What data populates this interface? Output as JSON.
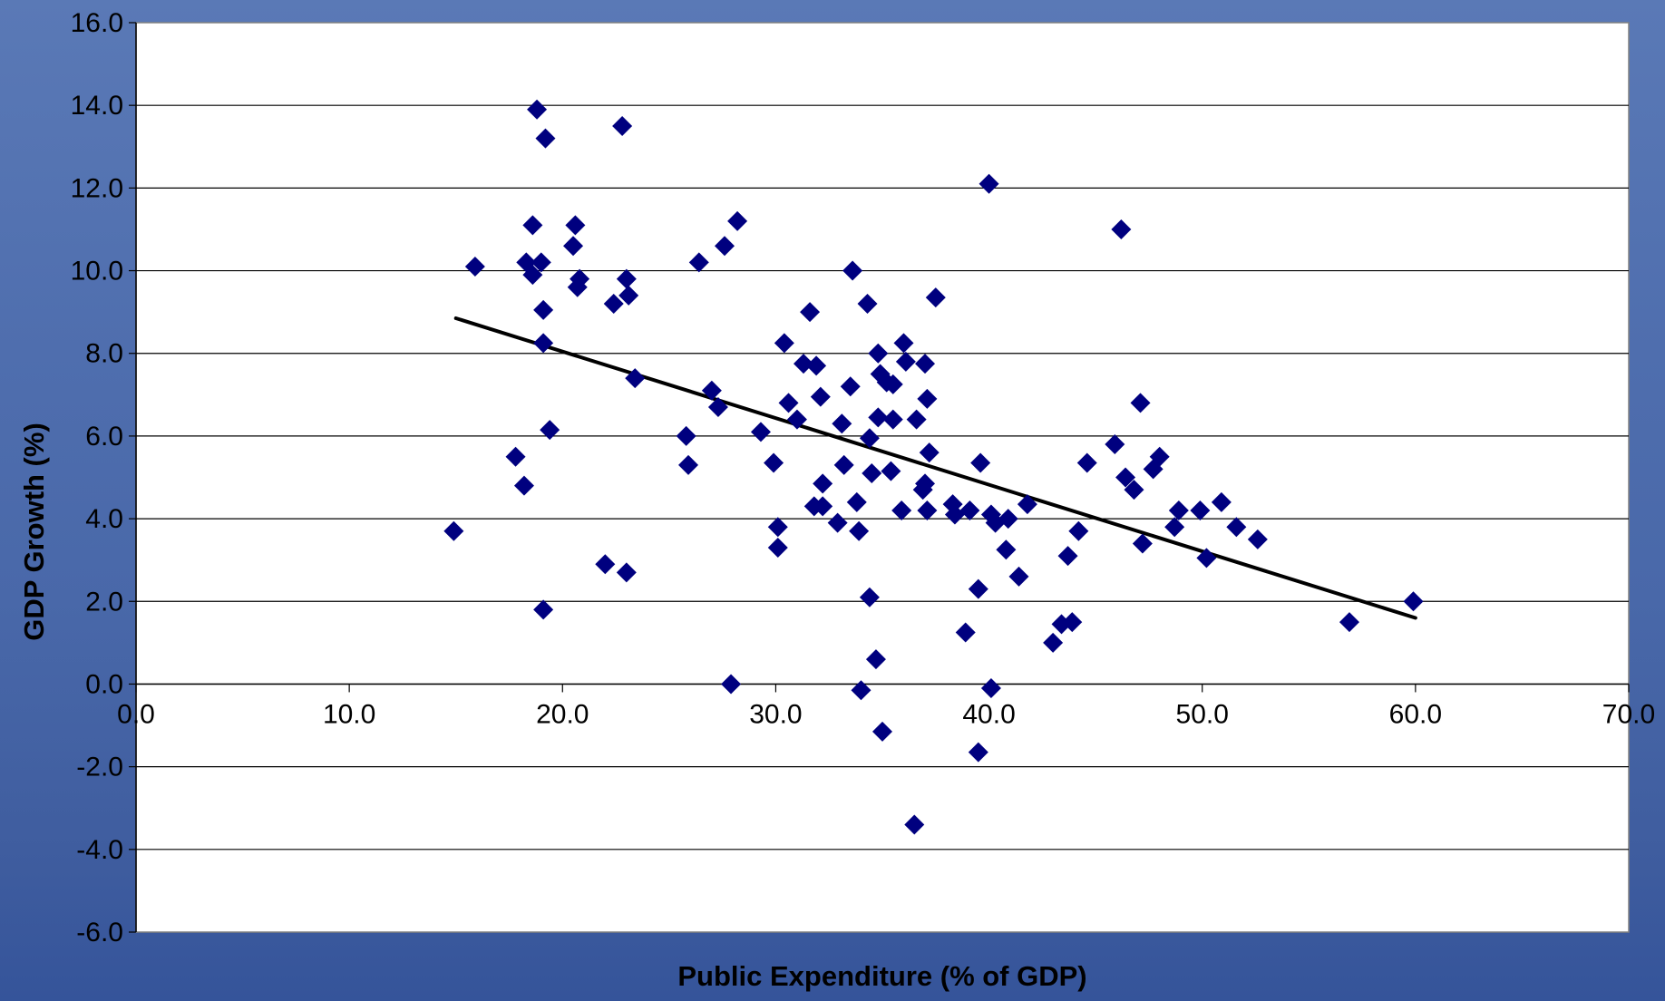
{
  "chart_data": {
    "type": "scatter",
    "title": "",
    "xlabel": "Public Expenditure (% of GDP)",
    "ylabel": "GDP Growth (%)",
    "xlim": [
      0,
      70
    ],
    "ylim": [
      -6,
      16
    ],
    "x_ticks": [
      "0.0",
      "10.0",
      "20.0",
      "30.0",
      "40.0",
      "50.0",
      "60.0",
      "70.0"
    ],
    "y_ticks": [
      "16.0",
      "14.0",
      "12.0",
      "10.0",
      "8.0",
      "6.0",
      "4.0",
      "2.0",
      "0.0",
      "-2.0",
      "-4.0",
      "-6.0"
    ],
    "grid": "horizontal",
    "legend": "none",
    "colors": {
      "marker": "#00007f",
      "trendline": "#000000",
      "plot_bg": "#ffffff"
    },
    "series": [
      {
        "points": [
          [
            14.9,
            3.7
          ],
          [
            15.9,
            10.1
          ],
          [
            17.8,
            5.5
          ],
          [
            18.2,
            4.8
          ],
          [
            18.3,
            10.2
          ],
          [
            18.6,
            11.1
          ],
          [
            18.6,
            9.9
          ],
          [
            18.8,
            13.9
          ],
          [
            19.0,
            10.2
          ],
          [
            19.1,
            9.05
          ],
          [
            19.1,
            8.25
          ],
          [
            19.1,
            1.8
          ],
          [
            19.2,
            13.2
          ],
          [
            19.4,
            6.15
          ],
          [
            20.5,
            10.6
          ],
          [
            20.6,
            11.1
          ],
          [
            20.7,
            9.6
          ],
          [
            20.8,
            9.8
          ],
          [
            22.0,
            2.9
          ],
          [
            22.4,
            9.2
          ],
          [
            22.8,
            13.5
          ],
          [
            23.0,
            9.8
          ],
          [
            23.0,
            2.7
          ],
          [
            23.1,
            9.4
          ],
          [
            23.4,
            7.4
          ],
          [
            25.8,
            6.0
          ],
          [
            25.9,
            5.3
          ],
          [
            26.4,
            10.2
          ],
          [
            27.0,
            7.1
          ],
          [
            27.3,
            6.7
          ],
          [
            27.6,
            10.6
          ],
          [
            27.9,
            0.0
          ],
          [
            28.2,
            11.2
          ],
          [
            29.3,
            6.1
          ],
          [
            29.9,
            5.35
          ],
          [
            30.1,
            3.8
          ],
          [
            30.1,
            3.3
          ],
          [
            30.4,
            8.25
          ],
          [
            30.6,
            6.8
          ],
          [
            31.0,
            6.4
          ],
          [
            31.3,
            7.75
          ],
          [
            31.6,
            9.0
          ],
          [
            31.8,
            4.3
          ],
          [
            31.9,
            7.7
          ],
          [
            32.1,
            6.95
          ],
          [
            32.2,
            4.85
          ],
          [
            32.2,
            4.3
          ],
          [
            32.9,
            3.9
          ],
          [
            33.1,
            6.3
          ],
          [
            33.2,
            5.3
          ],
          [
            33.5,
            7.2
          ],
          [
            33.6,
            10.0
          ],
          [
            33.8,
            4.4
          ],
          [
            33.9,
            3.7
          ],
          [
            34.0,
            -0.15
          ],
          [
            34.3,
            9.2
          ],
          [
            34.4,
            5.95
          ],
          [
            34.4,
            2.1
          ],
          [
            34.5,
            5.1
          ],
          [
            34.7,
            0.6
          ],
          [
            34.8,
            8.0
          ],
          [
            34.8,
            6.45
          ],
          [
            34.9,
            7.5
          ],
          [
            35.0,
            -1.15
          ],
          [
            35.2,
            7.3
          ],
          [
            35.4,
            5.15
          ],
          [
            35.5,
            7.25
          ],
          [
            35.5,
            6.4
          ],
          [
            35.9,
            4.2
          ],
          [
            36.0,
            8.25
          ],
          [
            36.1,
            7.8
          ],
          [
            36.5,
            -3.4
          ],
          [
            36.6,
            6.4
          ],
          [
            36.9,
            4.7
          ],
          [
            37.0,
            7.75
          ],
          [
            37.0,
            4.85
          ],
          [
            37.1,
            4.2
          ],
          [
            37.1,
            6.9
          ],
          [
            37.2,
            5.6
          ],
          [
            37.5,
            9.35
          ],
          [
            38.3,
            4.35
          ],
          [
            38.4,
            4.1
          ],
          [
            38.9,
            1.25
          ],
          [
            39.1,
            4.2
          ],
          [
            39.5,
            2.3
          ],
          [
            39.5,
            -1.65
          ],
          [
            39.6,
            5.35
          ],
          [
            40.0,
            12.1
          ],
          [
            40.1,
            -0.1
          ],
          [
            40.1,
            4.1
          ],
          [
            40.3,
            3.9
          ],
          [
            40.8,
            3.25
          ],
          [
            40.9,
            4.0
          ],
          [
            41.4,
            2.6
          ],
          [
            41.8,
            4.35
          ],
          [
            43.0,
            1.0
          ],
          [
            43.4,
            1.45
          ],
          [
            43.7,
            3.1
          ],
          [
            43.9,
            1.5
          ],
          [
            44.2,
            3.7
          ],
          [
            44.6,
            5.35
          ],
          [
            45.9,
            5.8
          ],
          [
            46.2,
            11.0
          ],
          [
            46.4,
            5.0
          ],
          [
            46.8,
            4.7
          ],
          [
            47.1,
            6.8
          ],
          [
            47.2,
            3.4
          ],
          [
            47.7,
            5.2
          ],
          [
            48.0,
            5.5
          ],
          [
            48.7,
            3.8
          ],
          [
            48.9,
            4.2
          ],
          [
            49.9,
            4.2
          ],
          [
            50.2,
            3.05
          ],
          [
            50.9,
            4.4
          ],
          [
            51.6,
            3.8
          ],
          [
            52.6,
            3.5
          ],
          [
            56.9,
            1.5
          ],
          [
            59.9,
            2.0
          ]
        ]
      }
    ],
    "trendline": {
      "x": [
        15,
        60
      ],
      "y": [
        8.85,
        1.6
      ]
    }
  }
}
